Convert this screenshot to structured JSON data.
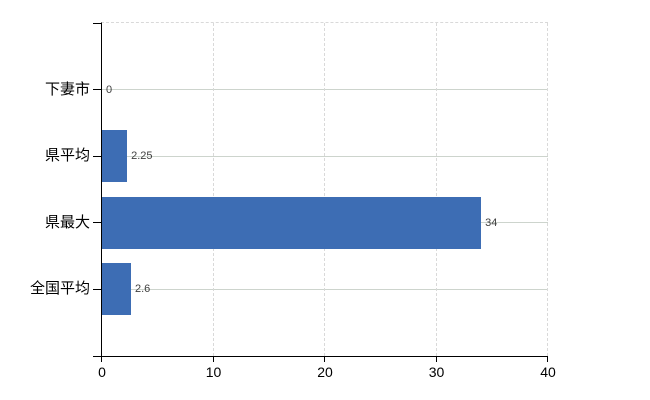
{
  "chart": {
    "background": "#ffffff",
    "bar_color": "#3d6db4",
    "axis_color": "#000000",
    "gridline_color": "#cdd4cd",
    "dashed_gridline_color": "#d9d9d9",
    "text_color": "#000000",
    "value_label_color": "#3f3f3f"
  },
  "chart_data": {
    "type": "bar",
    "orientation": "horizontal",
    "title": "",
    "xlabel": "",
    "ylabel": "",
    "categories": [
      "下妻市",
      "県平均",
      "県最大",
      "全国平均"
    ],
    "values": [
      0,
      2.25,
      34,
      2.6
    ],
    "value_labels": [
      "0",
      "2.25",
      "34",
      "2.6"
    ],
    "xlim": [
      0,
      40
    ],
    "xticks": [
      0,
      10,
      20,
      30,
      40
    ],
    "xtick_labels": [
      "0",
      "10",
      "20",
      "30",
      "40"
    ],
    "grid": true,
    "legend": false
  }
}
